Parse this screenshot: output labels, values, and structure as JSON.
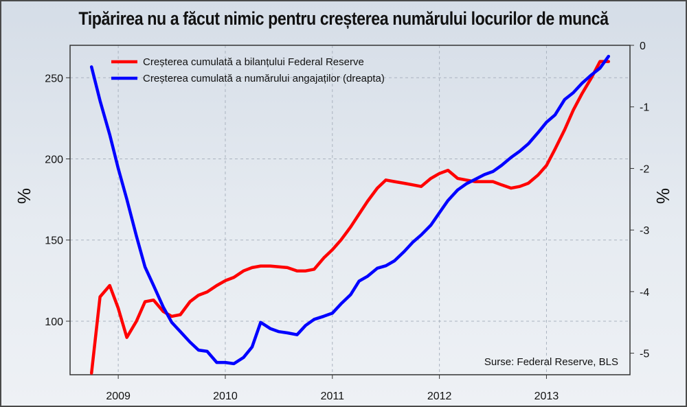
{
  "title": "Tipărirea nu a făcut nimic pentru creșterea numărului locurilor de muncă",
  "source": "Surse: Federal Reserve, BLS",
  "chart_data": {
    "type": "line",
    "title": "Tipărirea nu a făcut nimic pentru creșterea numărului locurilor de muncă",
    "ylabel_left": "%",
    "ylabel_right": "%",
    "x_ticks": [
      "2009",
      "2010",
      "2011",
      "2012",
      "2013"
    ],
    "y_left_ticks": [
      100,
      150,
      200,
      250
    ],
    "y_right_ticks": [
      0,
      -1,
      -2,
      -3,
      -4,
      -5
    ],
    "ylim_left": [
      67,
      270
    ],
    "ylim_right": [
      -5.35,
      0
    ],
    "xlim": [
      2008.55,
      2013.78
    ],
    "grid": true,
    "legend_position": "top-left",
    "series": [
      {
        "name": "Creșterea cumulată a bilanțului Federal Reserve",
        "color": "#ff0000",
        "axis": "left",
        "x": [
          2008.75,
          2008.83,
          2008.92,
          2009.0,
          2009.08,
          2009.17,
          2009.25,
          2009.33,
          2009.42,
          2009.5,
          2009.58,
          2009.67,
          2009.75,
          2009.83,
          2009.92,
          2010.0,
          2010.08,
          2010.17,
          2010.25,
          2010.33,
          2010.42,
          2010.5,
          2010.58,
          2010.67,
          2010.75,
          2010.83,
          2010.92,
          2011.0,
          2011.08,
          2011.17,
          2011.25,
          2011.33,
          2011.42,
          2011.5,
          2011.58,
          2011.67,
          2011.75,
          2011.83,
          2011.92,
          2012.0,
          2012.08,
          2012.17,
          2012.25,
          2012.33,
          2012.42,
          2012.5,
          2012.58,
          2012.67,
          2012.75,
          2012.83,
          2012.92,
          2013.0,
          2013.08,
          2013.17,
          2013.25,
          2013.33,
          2013.42,
          2013.5,
          2013.58
        ],
        "values": [
          68,
          115,
          122,
          108,
          90,
          100,
          112,
          113,
          106,
          103,
          104,
          112,
          116,
          118,
          122,
          125,
          127,
          131,
          133,
          134,
          134,
          133.5,
          133,
          131,
          131,
          132,
          139,
          144,
          150,
          158,
          166,
          174,
          182,
          187,
          186,
          185,
          184,
          183,
          188,
          191,
          193,
          188,
          187,
          186,
          186,
          186,
          184,
          182,
          183,
          185,
          190,
          196,
          206,
          218,
          230,
          240,
          250,
          260,
          260
        ]
      },
      {
        "name": "Creșterea cumulată a numărului angajaților (dreapta)",
        "color": "#0000ff",
        "axis": "right",
        "x": [
          2008.75,
          2008.83,
          2008.92,
          2009.0,
          2009.08,
          2009.17,
          2009.25,
          2009.33,
          2009.42,
          2009.5,
          2009.58,
          2009.67,
          2009.75,
          2009.83,
          2009.92,
          2010.0,
          2010.08,
          2010.17,
          2010.25,
          2010.33,
          2010.42,
          2010.5,
          2010.58,
          2010.67,
          2010.75,
          2010.83,
          2010.92,
          2011.0,
          2011.08,
          2011.17,
          2011.25,
          2011.33,
          2011.42,
          2011.5,
          2011.58,
          2011.67,
          2011.75,
          2011.83,
          2011.92,
          2012.0,
          2012.08,
          2012.17,
          2012.25,
          2012.33,
          2012.42,
          2012.5,
          2012.58,
          2012.67,
          2012.75,
          2012.83,
          2012.92,
          2013.0,
          2013.08,
          2013.17,
          2013.25,
          2013.33,
          2013.42,
          2013.5,
          2013.58
        ],
        "values": [
          -0.35,
          -0.9,
          -1.45,
          -2.0,
          -2.5,
          -3.1,
          -3.6,
          -3.9,
          -4.25,
          -4.5,
          -4.65,
          -4.82,
          -4.95,
          -4.97,
          -5.15,
          -5.15,
          -5.17,
          -5.07,
          -4.9,
          -4.5,
          -4.6,
          -4.65,
          -4.67,
          -4.7,
          -4.55,
          -4.45,
          -4.4,
          -4.35,
          -4.2,
          -4.05,
          -3.83,
          -3.75,
          -3.62,
          -3.58,
          -3.5,
          -3.35,
          -3.2,
          -3.08,
          -2.92,
          -2.72,
          -2.52,
          -2.35,
          -2.25,
          -2.18,
          -2.1,
          -2.05,
          -1.95,
          -1.82,
          -1.72,
          -1.6,
          -1.42,
          -1.25,
          -1.13,
          -0.88,
          -0.77,
          -0.62,
          -0.48,
          -0.37,
          -0.18
        ]
      }
    ]
  }
}
